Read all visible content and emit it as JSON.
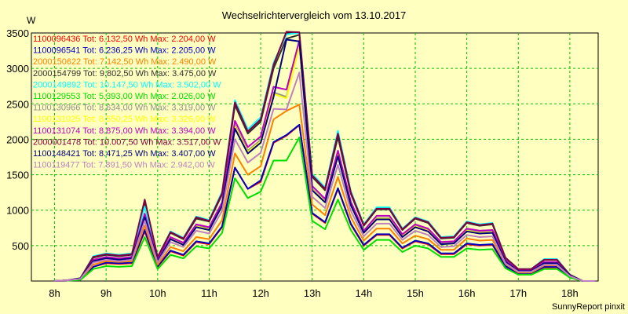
{
  "chart_data": {
    "type": "line",
    "title": "Wechselrichtervergleich vom 13.10.2017",
    "ylabel": "W",
    "xlabel": "",
    "ylim": [
      0,
      3500
    ],
    "y_ticks": [
      500,
      1000,
      1500,
      2000,
      2500,
      3000,
      3500
    ],
    "x_ticks": [
      "8h",
      "9h",
      "10h",
      "11h",
      "12h",
      "13h",
      "14h",
      "15h",
      "16h",
      "17h",
      "18h"
    ],
    "x_hours": [
      8.0,
      8.25,
      8.5,
      8.75,
      9.0,
      9.25,
      9.5,
      9.75,
      10.0,
      10.25,
      10.5,
      10.75,
      11.0,
      11.25,
      11.5,
      11.75,
      12.0,
      12.25,
      12.5,
      12.75,
      13.0,
      13.25,
      13.5,
      13.75,
      14.0,
      14.25,
      14.5,
      14.75,
      15.0,
      15.25,
      15.5,
      15.75,
      16.0,
      16.25,
      16.5,
      16.75,
      17.0,
      17.25,
      17.5,
      17.75,
      18.0,
      18.25,
      18.5
    ],
    "grid": true,
    "legend_placement": "top-left",
    "footer": "SunnyReport pinxit",
    "series": [
      {
        "name": "1100096436 Tot: 6.132,50 Wh Max: 2.204,00 W",
        "color": "#ff0000",
        "values": [
          0,
          5,
          20,
          200,
          250,
          240,
          250,
          700,
          200,
          420,
          360,
          550,
          520,
          760,
          1600,
          1300,
          1400,
          1950,
          2050,
          2200,
          950,
          820,
          1300,
          800,
          500,
          650,
          650,
          460,
          560,
          520,
          380,
          380,
          520,
          500,
          510,
          200,
          100,
          100,
          190,
          190,
          60,
          0,
          0
        ]
      },
      {
        "name": "1100096541 Tot: 6.236,25 Wh Max: 2.205,00 W",
        "color": "#0000c0",
        "values": [
          0,
          5,
          20,
          200,
          260,
          250,
          260,
          720,
          210,
          430,
          370,
          560,
          530,
          770,
          1600,
          1300,
          1420,
          1960,
          2060,
          2205,
          960,
          830,
          1310,
          810,
          510,
          660,
          660,
          470,
          570,
          530,
          390,
          390,
          530,
          510,
          520,
          210,
          110,
          110,
          200,
          200,
          60,
          0,
          0
        ]
      },
      {
        "name": "2000150622 Tot: 7.142,50 Wh Max: 2.490,00 W",
        "color": "#ff8000",
        "values": [
          0,
          10,
          25,
          230,
          280,
          270,
          280,
          780,
          230,
          480,
          420,
          620,
          590,
          860,
          1800,
          1500,
          1620,
          2280,
          2400,
          2490,
          1080,
          930,
          1470,
          900,
          570,
          740,
          740,
          530,
          640,
          590,
          440,
          440,
          600,
          570,
          580,
          240,
          120,
          120,
          220,
          220,
          70,
          0,
          0
        ]
      },
      {
        "name": "2000154799 Tot: 9.802,50 Wh Max: 3.475,00 W",
        "color": "#303030",
        "values": [
          0,
          10,
          40,
          330,
          370,
          350,
          370,
          1100,
          330,
          680,
          590,
          880,
          840,
          1220,
          2480,
          2080,
          2250,
          3000,
          3420,
          3475,
          1470,
          1280,
          2030,
          1230,
          780,
          1010,
          1010,
          720,
          880,
          820,
          600,
          610,
          820,
          780,
          800,
          320,
          160,
          160,
          300,
          300,
          90,
          0,
          0
        ]
      },
      {
        "name": "2000149892 Tot: 10.147,50 Wh Max: 3.502,00 W",
        "color": "#00ffff",
        "values": [
          0,
          10,
          40,
          350,
          390,
          370,
          390,
          1050,
          340,
          700,
          610,
          910,
          860,
          1260,
          2550,
          2140,
          2310,
          3080,
          3480,
          3502,
          1510,
          1320,
          2120,
          1270,
          800,
          1040,
          1040,
          740,
          900,
          840,
          620,
          630,
          840,
          800,
          820,
          330,
          170,
          170,
          310,
          310,
          90,
          0,
          0
        ]
      },
      {
        "name": "1100129553 Tot: 5.393,00 Wh Max: 2.026,00 W",
        "color": "#00e000",
        "values": [
          0,
          5,
          15,
          170,
          210,
          200,
          210,
          620,
          170,
          370,
          320,
          490,
          460,
          680,
          1450,
          1170,
          1260,
          1700,
          1700,
          2026,
          850,
          730,
          1150,
          720,
          440,
          580,
          580,
          410,
          500,
          460,
          340,
          340,
          460,
          440,
          450,
          180,
          90,
          90,
          170,
          170,
          50,
          0,
          0
        ]
      },
      {
        "name": "1100130966 Tot: 8.634,00 Wh Max: 3.319,00 W",
        "color": "#909090",
        "values": [
          0,
          10,
          35,
          290,
          330,
          310,
          330,
          920,
          290,
          600,
          520,
          780,
          740,
          1080,
          2200,
          1840,
          1990,
          2660,
          2600,
          3319,
          1300,
          1130,
          1790,
          1090,
          690,
          890,
          890,
          640,
          780,
          720,
          530,
          540,
          720,
          690,
          700,
          280,
          140,
          140,
          260,
          260,
          80,
          0,
          0
        ]
      },
      {
        "name": "1100131025 Tot: 8.550,25 Wh Max: 3.326,00 W",
        "color": "#ffff00",
        "values": [
          0,
          10,
          35,
          285,
          325,
          305,
          325,
          910,
          285,
          595,
          515,
          770,
          730,
          1070,
          2180,
          1820,
          1970,
          2640,
          2580,
          3326,
          1290,
          1120,
          1780,
          1080,
          680,
          880,
          880,
          630,
          770,
          710,
          520,
          530,
          710,
          680,
          690,
          280,
          140,
          140,
          260,
          260,
          80,
          0,
          0
        ]
      },
      {
        "name": "1100131074 Tot: 8.875,00 Wh Max: 3.394,00 W",
        "color": "#c000c0",
        "values": [
          0,
          10,
          35,
          300,
          340,
          320,
          340,
          950,
          300,
          620,
          540,
          800,
          760,
          1110,
          2260,
          1890,
          2040,
          2740,
          2700,
          3394,
          1340,
          1160,
          1840,
          1120,
          710,
          920,
          920,
          660,
          800,
          740,
          550,
          560,
          740,
          710,
          720,
          290,
          150,
          150,
          270,
          270,
          80,
          0,
          0
        ]
      },
      {
        "name": "2000001478 Tot: 10.007,50 Wh Max: 3.517,00 W",
        "color": "#800040",
        "values": [
          0,
          10,
          40,
          340,
          380,
          360,
          380,
          1150,
          340,
          690,
          600,
          900,
          850,
          1240,
          2520,
          2110,
          2280,
          3050,
          3517,
          3510,
          1490,
          1300,
          2080,
          1250,
          790,
          1020,
          1020,
          730,
          890,
          830,
          610,
          620,
          830,
          790,
          810,
          330,
          170,
          170,
          300,
          300,
          90,
          0,
          0
        ]
      },
      {
        "name": "1100148421 Tot: 8.471,25 Wh Max: 3.407,00 W",
        "color": "#000080",
        "values": [
          0,
          10,
          35,
          280,
          320,
          300,
          320,
          900,
          280,
          590,
          510,
          760,
          720,
          1060,
          2150,
          1800,
          1950,
          2600,
          3407,
          3380,
          1280,
          1110,
          1760,
          1070,
          680,
          870,
          870,
          620,
          760,
          700,
          520,
          530,
          700,
          670,
          680,
          270,
          140,
          140,
          250,
          250,
          80,
          0,
          0
        ]
      },
      {
        "name": "1100119477 Tot: 7.891,50 Wh Max: 2.942,00 W",
        "color": "#c080c0",
        "values": [
          0,
          10,
          30,
          260,
          300,
          280,
          300,
          850,
          260,
          550,
          480,
          710,
          670,
          990,
          2000,
          1670,
          1810,
          2430,
          2420,
          2942,
          1190,
          1030,
          1640,
          990,
          630,
          810,
          810,
          580,
          710,
          650,
          480,
          490,
          650,
          620,
          630,
          250,
          130,
          130,
          230,
          230,
          70,
          0,
          0
        ]
      }
    ]
  }
}
